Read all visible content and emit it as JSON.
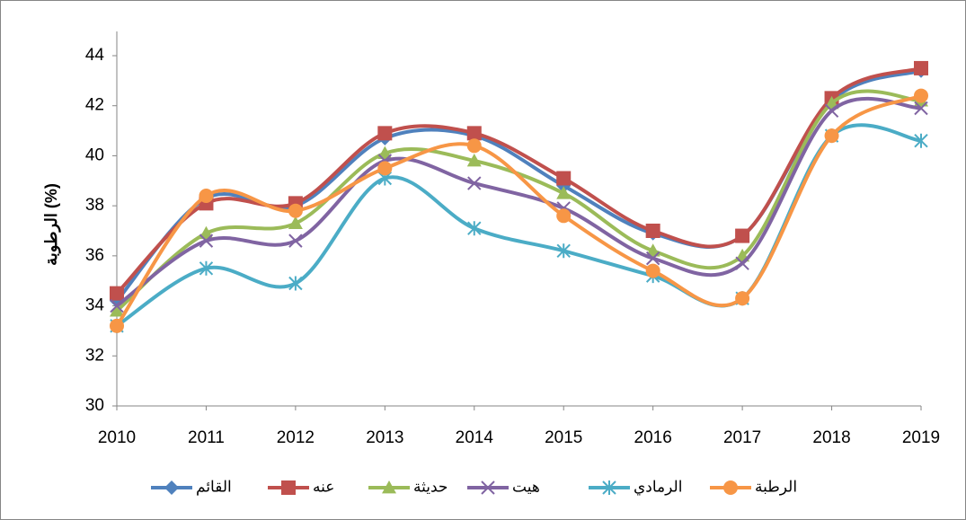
{
  "chart_data": {
    "type": "line",
    "smooth": true,
    "legend": "bottom",
    "grid": false,
    "y_label": "الرطوبة (%)",
    "x": [
      2010,
      2011,
      2012,
      2013,
      2014,
      2015,
      2016,
      2017,
      2018,
      2019
    ],
    "xlim": [
      2010,
      2019
    ],
    "xticks": [
      2010,
      2011,
      2012,
      2013,
      2014,
      2015,
      2016,
      2017,
      2018,
      2019
    ],
    "ylim": [
      30,
      44
    ],
    "yticks": [
      30,
      32,
      34,
      36,
      38,
      40,
      42,
      44
    ],
    "series": [
      {
        "name": "القائم",
        "color": "#4F81BD",
        "marker": "diamond",
        "values": [
          34.2,
          38.3,
          38.0,
          40.7,
          40.8,
          38.8,
          36.9,
          36.8,
          42.2,
          43.4
        ]
      },
      {
        "name": "عنه",
        "color": "#C0504D",
        "marker": "square",
        "values": [
          34.5,
          38.1,
          38.1,
          40.9,
          40.9,
          39.1,
          37.0,
          36.8,
          42.3,
          43.5
        ]
      },
      {
        "name": "حديثة",
        "color": "#9BBB59",
        "marker": "triangle",
        "values": [
          33.8,
          36.9,
          37.3,
          40.1,
          39.8,
          38.5,
          36.2,
          36.0,
          42.1,
          42.2
        ]
      },
      {
        "name": "هيت",
        "color": "#8064A2",
        "marker": "x",
        "values": [
          34.0,
          36.6,
          36.6,
          39.8,
          38.9,
          37.9,
          35.9,
          35.7,
          41.8,
          41.9
        ]
      },
      {
        "name": "الرمادي",
        "color": "#4BACC6",
        "marker": "star",
        "values": [
          33.2,
          35.5,
          34.9,
          39.1,
          37.1,
          36.2,
          35.2,
          34.3,
          40.8,
          40.6
        ]
      },
      {
        "name": "الرطبة",
        "color": "#F79646",
        "marker": "circle",
        "values": [
          33.2,
          38.4,
          37.8,
          39.5,
          40.4,
          37.6,
          35.4,
          34.3,
          40.8,
          42.4
        ]
      }
    ]
  }
}
